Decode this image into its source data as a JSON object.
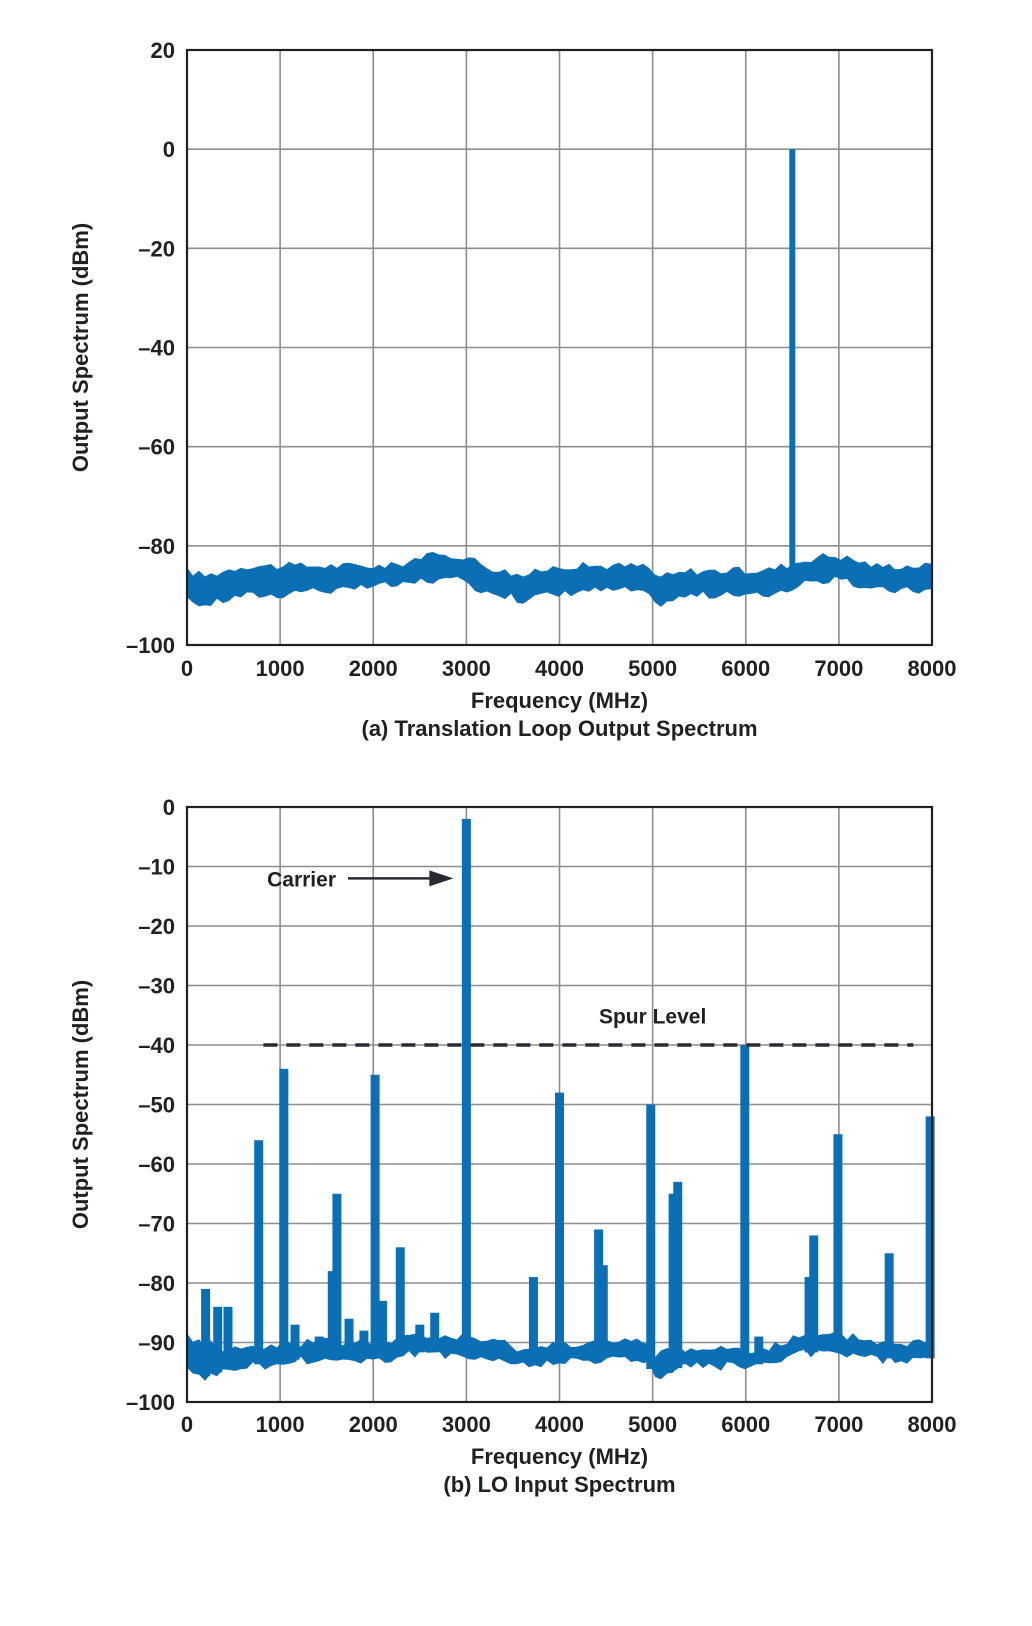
{
  "colors": {
    "trace": "#0b6fb5",
    "text": "#231f20",
    "grid": "#8e8e8e",
    "spur_line": "#2a2a35"
  },
  "chart_data": [
    {
      "type": "line",
      "caption": "(a) Translation Loop Output Spectrum",
      "xlabel": "Frequency (MHz)",
      "ylabel": "Output Spectrum (dBm)",
      "xlim": [
        0,
        8000
      ],
      "ylim": [
        -100,
        20
      ],
      "xticks": [
        0,
        1000,
        2000,
        3000,
        4000,
        5000,
        6000,
        7000,
        8000
      ],
      "yticks": [
        20,
        0,
        -20,
        -40,
        -60,
        -80,
        -100
      ],
      "ytick_labels": [
        "20",
        "0",
        "–20",
        "–40",
        "–60",
        "–80",
        "–100"
      ],
      "grid": true,
      "noise_floor": {
        "x": [
          0,
          200,
          400,
          600,
          800,
          1000,
          1200,
          1400,
          1600,
          1800,
          2000,
          2200,
          2400,
          2500,
          2700,
          2900,
          3000,
          3200,
          3400,
          3600,
          3800,
          4000,
          4200,
          4400,
          4600,
          4800,
          4950,
          5000,
          5200,
          5400,
          5600,
          5800,
          6000,
          6200,
          6400,
          6600,
          6800,
          7000,
          7200,
          7400,
          7600,
          7800,
          8000
        ],
        "upper": [
          -85,
          -86,
          -85,
          -84,
          -84,
          -84,
          -84,
          -84,
          -84,
          -84,
          -84,
          -84,
          -83,
          -82,
          -82,
          -82,
          -82,
          -84,
          -85,
          -86,
          -85,
          -84,
          -84,
          -84,
          -84,
          -84,
          -84,
          -86,
          -86,
          -85,
          -85,
          -85,
          -85,
          -85,
          -84,
          -83,
          -82,
          -82,
          -83,
          -84,
          -84,
          -84,
          -84
        ],
        "lower": [
          -91,
          -92,
          -91,
          -90,
          -90,
          -90,
          -89,
          -89,
          -89,
          -89,
          -88,
          -88,
          -88,
          -87,
          -87,
          -87,
          -88,
          -89,
          -90,
          -91,
          -90,
          -90,
          -89,
          -89,
          -89,
          -89,
          -90,
          -92,
          -91,
          -90,
          -90,
          -90,
          -90,
          -90,
          -89,
          -88,
          -87,
          -87,
          -88,
          -89,
          -89,
          -89,
          -89
        ]
      },
      "peaks": [
        {
          "x": 6500,
          "y": 0
        }
      ]
    },
    {
      "type": "line",
      "caption": "(b) LO Input Spectrum",
      "xlabel": "Frequency (MHz)",
      "ylabel": "Output Spectrum (dBm)",
      "xlim": [
        0,
        8000
      ],
      "ylim": [
        -100,
        0
      ],
      "xticks": [
        0,
        1000,
        2000,
        3000,
        4000,
        5000,
        6000,
        7000,
        8000
      ],
      "yticks": [
        0,
        -10,
        -20,
        -30,
        -40,
        -50,
        -60,
        -70,
        -80,
        -90,
        -100
      ],
      "ytick_labels": [
        "0",
        "–10",
        "–20",
        "–30",
        "–40",
        "–50",
        "–60",
        "–70",
        "–80",
        "–90",
        "–100"
      ],
      "grid": true,
      "noise_floor": {
        "x": [
          0,
          200,
          400,
          600,
          800,
          1000,
          1200,
          1400,
          1600,
          1800,
          2000,
          2200,
          2400,
          2600,
          2800,
          3000,
          3200,
          3400,
          3600,
          3800,
          4000,
          4200,
          4400,
          4600,
          4800,
          4950,
          5000,
          5200,
          5400,
          5600,
          5800,
          6000,
          6200,
          6400,
          6600,
          6800,
          7000,
          7200,
          7400,
          7600,
          7800,
          8000
        ],
        "upper": [
          -89,
          -90,
          -91,
          -91,
          -91,
          -90,
          -90,
          -90,
          -90,
          -90,
          -90,
          -90,
          -89,
          -89,
          -89,
          -89,
          -90,
          -90,
          -91,
          -91,
          -90,
          -90,
          -90,
          -90,
          -90,
          -90,
          -92,
          -91,
          -91,
          -91,
          -91,
          -91,
          -91,
          -90,
          -89,
          -89,
          -89,
          -89,
          -90,
          -90,
          -90,
          -90
        ],
        "lower": [
          -95,
          -96,
          -95,
          -94,
          -94,
          -94,
          -93,
          -93,
          -93,
          -93,
          -93,
          -93,
          -92,
          -92,
          -92,
          -92,
          -93,
          -93,
          -94,
          -94,
          -93,
          -93,
          -93,
          -93,
          -93,
          -93,
          -96,
          -95,
          -94,
          -94,
          -94,
          -94,
          -94,
          -93,
          -92,
          -92,
          -92,
          -92,
          -93,
          -93,
          -93,
          -93
        ]
      },
      "peaks": [
        {
          "x": 200,
          "y": -81
        },
        {
          "x": 330,
          "y": -84
        },
        {
          "x": 440,
          "y": -84
        },
        {
          "x": 770,
          "y": -56
        },
        {
          "x": 1040,
          "y": -44
        },
        {
          "x": 1160,
          "y": -87
        },
        {
          "x": 1420,
          "y": -89
        },
        {
          "x": 1560,
          "y": -78
        },
        {
          "x": 1610,
          "y": -65
        },
        {
          "x": 1740,
          "y": -86
        },
        {
          "x": 1900,
          "y": -88
        },
        {
          "x": 2020,
          "y": -45
        },
        {
          "x": 2100,
          "y": -83
        },
        {
          "x": 2290,
          "y": -74
        },
        {
          "x": 2500,
          "y": -87
        },
        {
          "x": 2660,
          "y": -85
        },
        {
          "x": 3000,
          "y": -2
        },
        {
          "x": 3720,
          "y": -79
        },
        {
          "x": 4000,
          "y": -48
        },
        {
          "x": 4420,
          "y": -71
        },
        {
          "x": 4470,
          "y": -77
        },
        {
          "x": 4980,
          "y": -50
        },
        {
          "x": 5220,
          "y": -65
        },
        {
          "x": 5270,
          "y": -63
        },
        {
          "x": 5990,
          "y": -40
        },
        {
          "x": 6140,
          "y": -89
        },
        {
          "x": 6680,
          "y": -79
        },
        {
          "x": 6730,
          "y": -72
        },
        {
          "x": 6990,
          "y": -55
        },
        {
          "x": 7540,
          "y": -75
        },
        {
          "x": 7980,
          "y": -52
        }
      ],
      "annotations": {
        "carrier": {
          "text": "Carrier",
          "x": 1600,
          "y": -12,
          "arrow_to_x": 2860
        },
        "spur_level": {
          "text": "Spur Level",
          "text_x": 5000,
          "text_y": -35,
          "y": -40,
          "x_start": 820,
          "x_end": 7800
        }
      }
    }
  ]
}
